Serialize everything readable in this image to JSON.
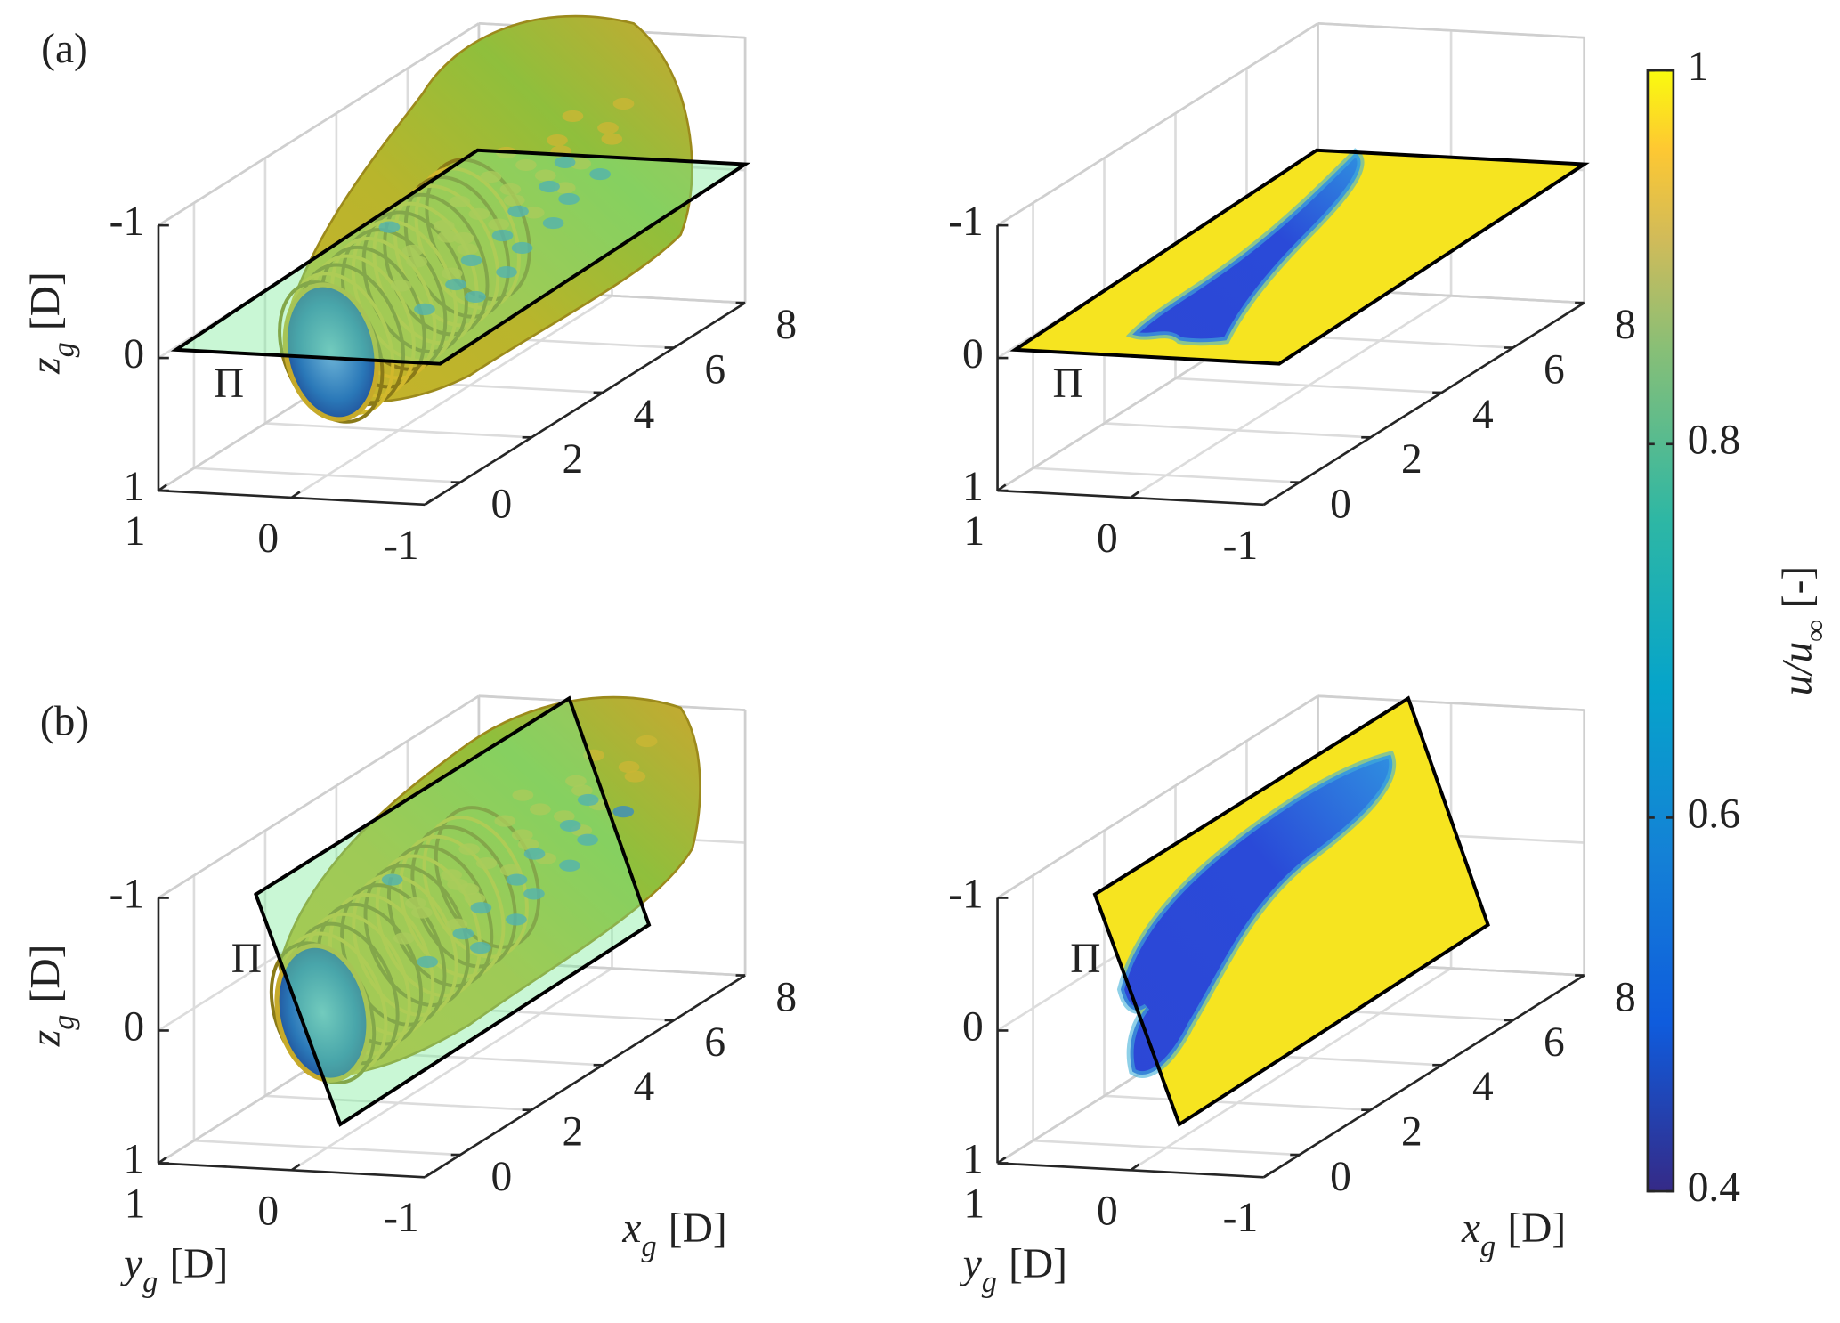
{
  "chart_data": [
    {
      "type": "surface3d",
      "view": "isosurface",
      "plane": "horizontal",
      "panel_label": "(a)",
      "plane_label": "Π",
      "xlim": [
        -1,
        8
      ],
      "ylim": [
        -1,
        1
      ],
      "zlim": [
        -1,
        1
      ],
      "xticks": [
        0,
        2,
        4,
        6,
        8
      ],
      "yticks": [
        1,
        0,
        -1
      ],
      "zticks": [
        -1,
        0,
        1
      ],
      "grid": true,
      "zlabel": {
        "symbol": "z",
        "subscript": "g",
        "unit": "[D]"
      }
    },
    {
      "type": "surface3d",
      "view": "slice",
      "plane": "horizontal",
      "plane_label": "Π",
      "xlim": [
        -1,
        8
      ],
      "ylim": [
        -1,
        1
      ],
      "zlim": [
        -1,
        1
      ],
      "xticks": [
        0,
        2,
        4,
        6,
        8
      ],
      "yticks": [
        1,
        0,
        -1
      ],
      "zticks": [
        -1,
        0,
        1
      ],
      "grid": true
    },
    {
      "type": "surface3d",
      "view": "isosurface",
      "plane": "vertical",
      "panel_label": "(b)",
      "plane_label": "Π",
      "xlim": [
        -1,
        8
      ],
      "ylim": [
        -1,
        1
      ],
      "zlim": [
        -1,
        1
      ],
      "xticks": [
        0,
        2,
        4,
        6,
        8
      ],
      "yticks": [
        1,
        0,
        -1
      ],
      "zticks": [
        -1,
        0,
        1
      ],
      "grid": true,
      "zlabel": {
        "symbol": "z",
        "subscript": "g",
        "unit": "[D]"
      },
      "xlabel": {
        "symbol": "x",
        "subscript": "g",
        "unit": "[D]"
      },
      "ylabel": {
        "symbol": "y",
        "subscript": "g",
        "unit": "[D]"
      }
    },
    {
      "type": "surface3d",
      "view": "slice",
      "plane": "vertical",
      "plane_label": "Π",
      "xlim": [
        -1,
        8
      ],
      "ylim": [
        -1,
        1
      ],
      "zlim": [
        -1,
        1
      ],
      "xticks": [
        0,
        2,
        4,
        6,
        8
      ],
      "yticks": [
        1,
        0,
        -1
      ],
      "zticks": [
        -1,
        0,
        1
      ],
      "grid": true,
      "xlabel": {
        "symbol": "x",
        "subscript": "g",
        "unit": "[D]"
      },
      "ylabel": {
        "symbol": "y",
        "subscript": "g",
        "unit": "[D]"
      }
    },
    {
      "type": "colorbar",
      "colormap": "parula",
      "ylim": [
        0.4,
        1
      ],
      "yticks": [
        0.4,
        0.6,
        0.8,
        1
      ],
      "label": {
        "symbol": "u/u",
        "subscript": "∞",
        "unit": "[-]"
      }
    }
  ]
}
